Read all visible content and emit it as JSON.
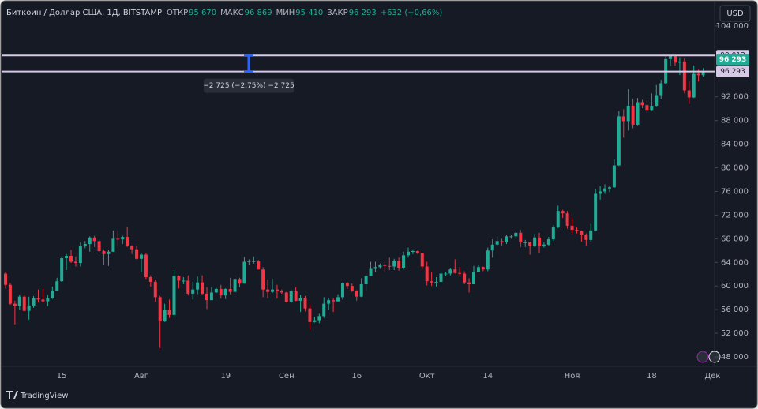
{
  "chart_data": {
    "type": "candlestick",
    "header": {
      "symbol": "Биткоин / Доллар США, 1Д, BITSTAMP",
      "open_label": "ОТКР",
      "open": "95 670",
      "high_label": "МАКС",
      "high": "96 869",
      "low_label": "МИН",
      "low": "95 410",
      "close_label": "ЗАКР",
      "close": "96 293",
      "change": "+632 (+0,66%)"
    },
    "categories": [
      null,
      null,
      null,
      null,
      null,
      null,
      null,
      null,
      null,
      null,
      null,
      null,
      "15",
      null,
      null,
      null,
      null,
      null,
      null,
      null,
      null,
      null,
      null,
      null,
      null,
      null,
      null,
      null,
      null,
      "Авг",
      null,
      null,
      null,
      null,
      null,
      null,
      null,
      null,
      null,
      null,
      null,
      null,
      null,
      null,
      null,
      null,
      null,
      "19",
      null,
      null,
      null,
      null,
      null,
      null,
      null,
      null,
      null,
      null,
      null,
      null,
      "Сен",
      null,
      null,
      null,
      null,
      null,
      null,
      null,
      null,
      null,
      null,
      null,
      null,
      null,
      null,
      "16",
      null,
      null,
      null,
      null,
      null,
      null,
      null,
      null,
      null,
      null,
      null,
      null,
      null,
      null,
      "Окт",
      null,
      null,
      null,
      null,
      null,
      null,
      null,
      null,
      null,
      null,
      null,
      null,
      "14",
      null,
      null,
      null,
      null,
      null,
      null,
      null,
      null,
      null,
      null,
      null,
      null,
      null,
      null,
      null,
      null,
      null,
      "Ноя",
      null,
      null,
      null,
      null,
      null,
      null,
      null,
      null,
      null,
      null,
      null,
      null,
      null,
      null,
      null,
      null,
      "18",
      null,
      null,
      null,
      null,
      null,
      null,
      null,
      null,
      null,
      null,
      null,
      null,
      "Дек"
    ],
    "open": [
      62100,
      60200,
      57000,
      56600,
      58200,
      55800,
      56700,
      57900,
      57700,
      57400,
      57900,
      59200,
      60800,
      64700,
      65100,
      64100,
      63900,
      66700,
      67100,
      68200,
      67600,
      65900,
      65400,
      65800,
      68000,
      67900,
      68300,
      66800,
      66200,
      64600,
      65300,
      61500,
      60700,
      58100,
      54000,
      56000,
      55100,
      61700,
      60900,
      60900,
      58700,
      59400,
      60600,
      58700,
      57600,
      58900,
      59500,
      58400,
      59500,
      59000,
      61200,
      60400,
      64100,
      64200,
      64200,
      62800,
      59400,
      59000,
      59400,
      59100,
      58900,
      57300,
      59100,
      57500,
      58000,
      56200,
      53900,
      54200,
      54900,
      57000,
      57600,
      57400,
      58100,
      60500,
      60000,
      59200,
      58200,
      60300,
      61700,
      62900,
      63200,
      63600,
      63400,
      63300,
      64300,
      63100,
      65200,
      65800,
      65900,
      65600,
      63300,
      60800,
      60600,
      60700,
      62100,
      62100,
      62800,
      62200,
      62100,
      60600,
      60300,
      62400,
      63200,
      62800,
      66000,
      67000,
      67600,
      67400,
      68400,
      68400,
      69000,
      67400,
      67400,
      66700,
      68200,
      66700,
      67000,
      67900,
      69900,
      72700,
      72300,
      70200,
      69500,
      69300,
      68700,
      67800,
      69400,
      75600,
      76000,
      76500,
      76700,
      80400,
      88700,
      87900,
      90500,
      87300,
      91100,
      90600,
      89800,
      90500,
      92300,
      94300,
      98400,
      98900,
      97800,
      98000,
      93100,
      91900,
      95900,
      95670,
      null,
      null
    ],
    "high": [
      62400,
      60500,
      57500,
      58500,
      58400,
      58200,
      58300,
      59400,
      59500,
      58500,
      59900,
      61400,
      64900,
      65400,
      66100,
      65000,
      67400,
      67600,
      68400,
      68500,
      67800,
      66200,
      66100,
      69400,
      69400,
      68500,
      70000,
      66900,
      66800,
      65600,
      65600,
      61800,
      61100,
      58300,
      57000,
      57700,
      62700,
      61800,
      61500,
      61800,
      60700,
      61600,
      61800,
      59800,
      59800,
      59700,
      60200,
      59600,
      61400,
      61800,
      61400,
      64900,
      64500,
      65000,
      64400,
      63200,
      61100,
      61200,
      60200,
      59400,
      59000,
      59400,
      59800,
      58500,
      58300,
      56900,
      54800,
      55300,
      58100,
      58000,
      57900,
      58600,
      60600,
      60700,
      60400,
      59300,
      61300,
      62000,
      64100,
      64100,
      63800,
      64000,
      64800,
      64600,
      64800,
      65800,
      66500,
      66200,
      66000,
      65600,
      64100,
      62400,
      61500,
      62400,
      62400,
      63000,
      64500,
      63200,
      62500,
      61300,
      63400,
      63500,
      63300,
      66500,
      67900,
      68400,
      68000,
      68700,
      68700,
      69400,
      69500,
      67800,
      67500,
      68800,
      69000,
      67400,
      68300,
      70300,
      73600,
      72900,
      72700,
      71600,
      69900,
      69400,
      68900,
      70500,
      76400,
      76900,
      77200,
      76900,
      81400,
      89600,
      89900,
      93300,
      91700,
      91800,
      91500,
      91400,
      92600,
      94000,
      94900,
      98900,
      99013,
      98900,
      98700,
      98500,
      94600,
      97300,
      96600,
      96869,
      null,
      null
    ],
    "low": [
      59600,
      56800,
      53500,
      56000,
      55700,
      54300,
      56300,
      57200,
      57100,
      56600,
      57800,
      59200,
      60700,
      62700,
      63900,
      63300,
      63300,
      66400,
      65800,
      66600,
      65500,
      63500,
      63400,
      65800,
      66700,
      67100,
      66600,
      65400,
      64500,
      62300,
      61200,
      59900,
      57300,
      49500,
      53900,
      54600,
      54700,
      59600,
      60300,
      58400,
      57700,
      58600,
      58500,
      56100,
      57700,
      58800,
      57900,
      57800,
      58600,
      58800,
      59800,
      60400,
      63600,
      63800,
      62800,
      58100,
      57900,
      58800,
      57900,
      58700,
      57200,
      57100,
      57400,
      55600,
      55700,
      52600,
      53800,
      53700,
      54600,
      56000,
      55600,
      57300,
      57700,
      59500,
      59000,
      57500,
      58100,
      59200,
      61700,
      62400,
      62900,
      62400,
      62700,
      62700,
      62600,
      62800,
      64800,
      65400,
      65400,
      62900,
      60100,
      60000,
      59900,
      60500,
      61700,
      61800,
      62100,
      61800,
      60300,
      58900,
      60300,
      62400,
      62500,
      62500,
      64800,
      66800,
      66700,
      67100,
      68000,
      68200,
      66600,
      66600,
      65300,
      66600,
      65600,
      66500,
      66800,
      67600,
      69800,
      71500,
      69700,
      68800,
      68900,
      67500,
      66800,
      67500,
      69300,
      74600,
      75600,
      75900,
      76600,
      80300,
      85100,
      86300,
      86700,
      87200,
      90100,
      89300,
      89700,
      90400,
      91600,
      94100,
      97300,
      97200,
      95700,
      92600,
      90800,
      91800,
      94600,
      95410,
      null,
      null
    ],
    "close": [
      60200,
      57000,
      56600,
      58200,
      55800,
      56700,
      57900,
      57700,
      57400,
      57900,
      59200,
      60800,
      64700,
      65100,
      64100,
      63900,
      66700,
      67100,
      68200,
      67600,
      65900,
      65400,
      65800,
      68000,
      67900,
      68300,
      66800,
      66200,
      64600,
      65300,
      61500,
      60700,
      58100,
      54000,
      56000,
      55100,
      61700,
      60900,
      60900,
      58700,
      59400,
      60600,
      58700,
      57600,
      58900,
      59500,
      58400,
      59500,
      59000,
      61200,
      60400,
      64100,
      64200,
      64200,
      62800,
      59400,
      59000,
      59400,
      59100,
      58900,
      57300,
      59100,
      57500,
      58000,
      56200,
      53900,
      54200,
      54900,
      57000,
      57600,
      57400,
      58100,
      60500,
      60000,
      59200,
      58200,
      60300,
      61700,
      62900,
      63200,
      63600,
      63400,
      63300,
      64300,
      63100,
      65200,
      65800,
      65900,
      65600,
      63300,
      60800,
      60600,
      60700,
      62100,
      62100,
      62800,
      62200,
      62100,
      60600,
      60300,
      62400,
      63200,
      62800,
      66000,
      67000,
      67600,
      67400,
      68400,
      68400,
      69000,
      67400,
      67400,
      66700,
      68200,
      66700,
      67000,
      67900,
      69900,
      72700,
      72300,
      70200,
      69500,
      69300,
      68700,
      67800,
      69400,
      75600,
      76000,
      76500,
      76700,
      80400,
      88700,
      87900,
      90500,
      87300,
      91100,
      90600,
      89800,
      90500,
      92300,
      94300,
      98400,
      98900,
      97800,
      98000,
      93100,
      91900,
      95900,
      95661,
      96293,
      null,
      null
    ],
    "up_color": "#22ab94",
    "down_color": "#f23645",
    "ylim": [
      46530,
      108400
    ],
    "yticks": [
      {
        "value": 104000,
        "label": "104 000"
      },
      {
        "value": 92000,
        "label": "92 000"
      },
      {
        "value": 88000,
        "label": "88 000"
      },
      {
        "value": 84000,
        "label": "84 000"
      },
      {
        "value": 80000,
        "label": "80 000"
      },
      {
        "value": 76000,
        "label": "76 000"
      },
      {
        "value": 72000,
        "label": "72 000"
      },
      {
        "value": 68000,
        "label": "68 000"
      },
      {
        "value": 64000,
        "label": "64 000"
      },
      {
        "value": 60000,
        "label": "60 000"
      },
      {
        "value": 56000,
        "label": "56 000"
      },
      {
        "value": 52000,
        "label": "52 000"
      },
      {
        "value": 48000,
        "label": "48 000"
      }
    ],
    "grid": false,
    "levels": [
      {
        "value": 99013,
        "label": "99 013"
      },
      {
        "value": 96293,
        "label": "96 293"
      }
    ],
    "level_color": "#d8c8e8",
    "last_price_label": "96 293",
    "measure_label": "−2 725 (−2,75%) −2 725",
    "currency": "USD",
    "brand": "TradingView"
  }
}
